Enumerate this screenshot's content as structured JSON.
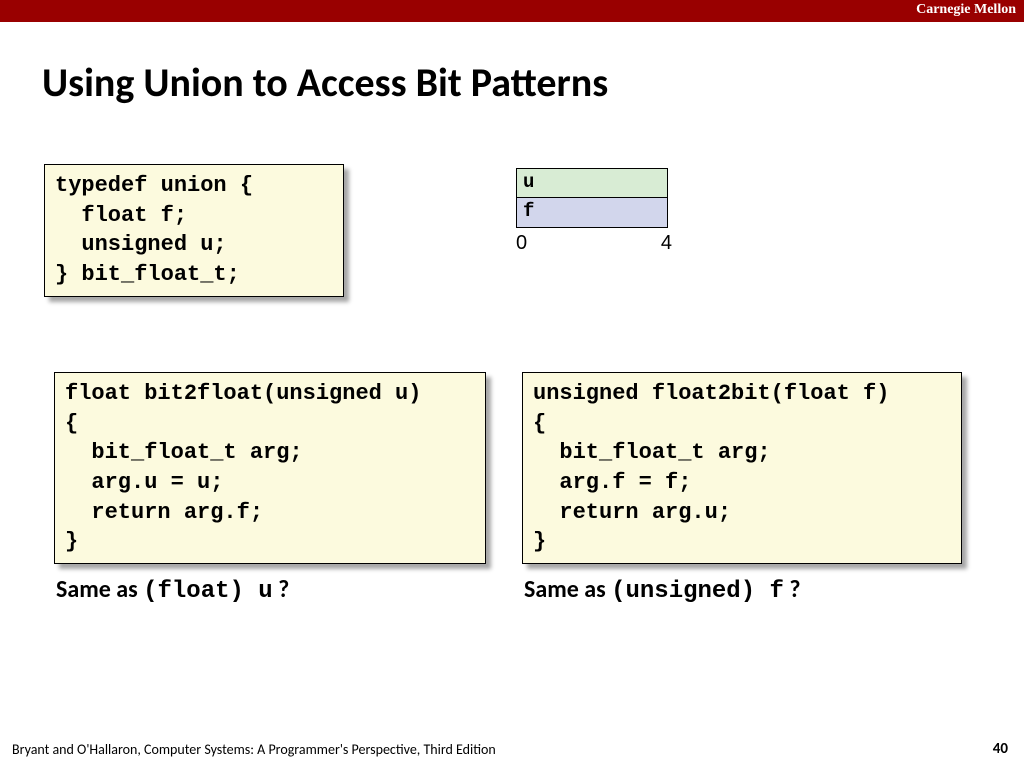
{
  "header": {
    "institution": "Carnegie Mellon"
  },
  "title": "Using Union to Access Bit Patterns",
  "code": {
    "typedef": "typedef union {\n  float f;\n  unsigned u;\n} bit_float_t;",
    "bit2float": "float bit2float(unsigned u)\n{\n  bit_float_t arg;\n  arg.u = u;\n  return arg.f;\n}",
    "float2bit": "unsigned float2bit(float f)\n{\n  bit_float_t arg;\n  arg.f = f;\n  return arg.u;\n}"
  },
  "diagram": {
    "u_label": "u",
    "f_label": "f",
    "start": "0",
    "end": "4",
    "u_color": "#d8ecd4",
    "f_color": "#d2d6ec"
  },
  "questions": {
    "left_prefix": "Same as ",
    "left_mono": "(float) u",
    "left_suffix": " ?",
    "right_prefix": "Same as ",
    "right_mono": "(unsigned) f",
    "right_suffix": " ?"
  },
  "footer": {
    "citation": "Bryant and O'Hallaron, Computer Systems: A Programmer's Perspective, Third Edition",
    "page": "40"
  }
}
